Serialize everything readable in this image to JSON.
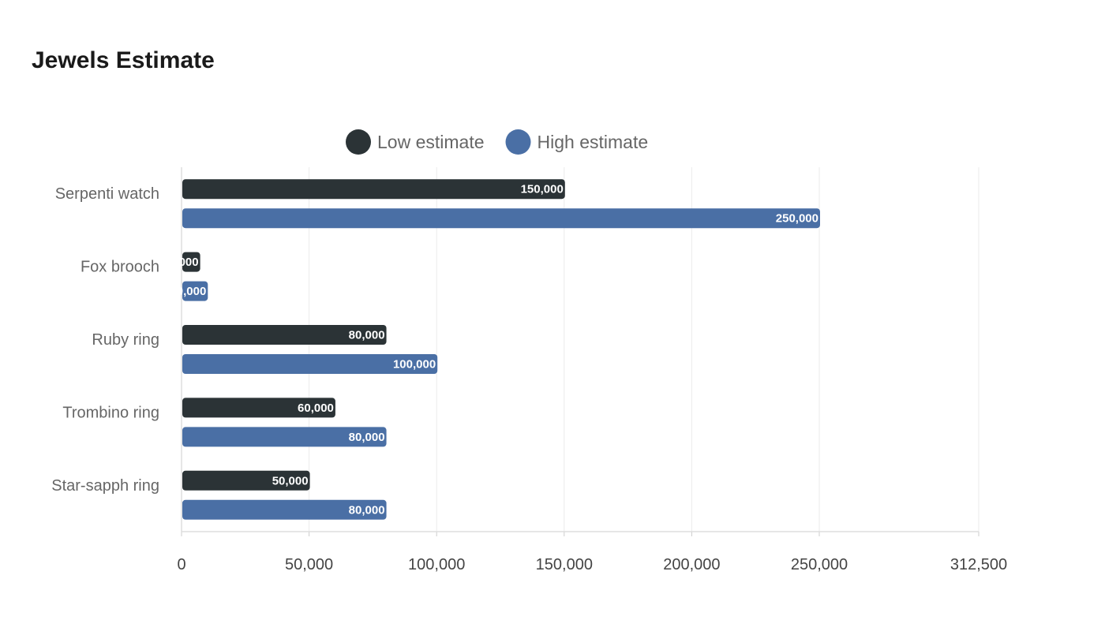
{
  "chart_data": {
    "type": "bar",
    "orientation": "horizontal",
    "title": "Jewels Estimate",
    "categories": [
      "Serpenti watch",
      "Fox brooch",
      "Ruby ring",
      "Trombino ring",
      "Star-sapph ring"
    ],
    "series": [
      {
        "name": "Low estimate",
        "color": "#2b3336",
        "values": [
          150000,
          7000,
          80000,
          60000,
          50000
        ]
      },
      {
        "name": "High estimate",
        "color": "#4a6fa5",
        "values": [
          250000,
          10000,
          100000,
          80000,
          80000
        ]
      }
    ],
    "x_ticks": [
      0,
      50000,
      100000,
      150000,
      200000,
      250000,
      312500
    ],
    "x_tick_labels": [
      "0",
      "50,000",
      "100,000",
      "150,000",
      "200,000",
      "250,000",
      "312,500"
    ],
    "xlim": [
      0,
      312500
    ],
    "grid": true,
    "legend_position": "top-center",
    "xlabel": "",
    "ylabel": ""
  }
}
